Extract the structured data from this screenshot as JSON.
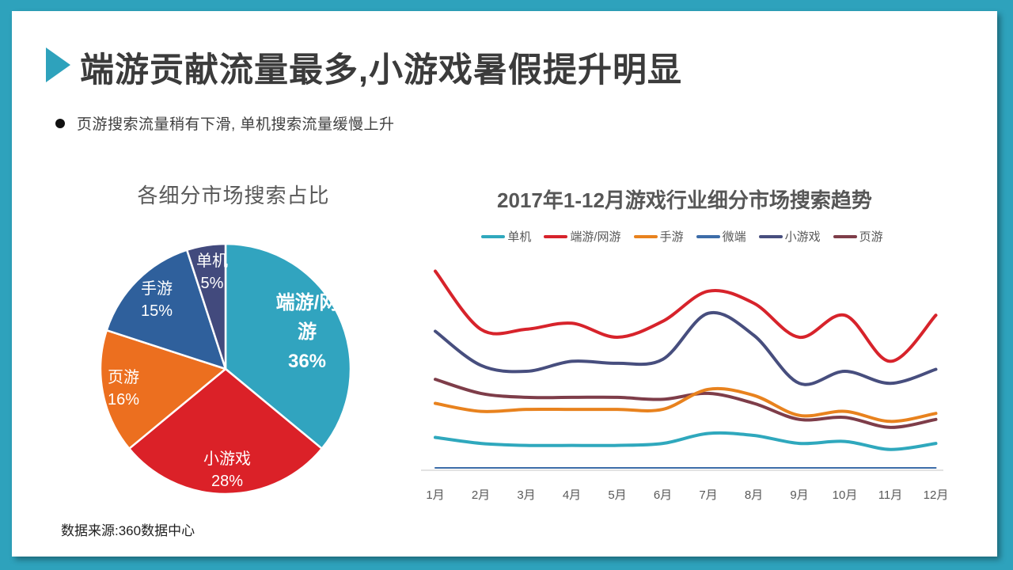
{
  "slide": {
    "title": "端游贡献流量最多,小游戏暑假提升明显",
    "bullet": "页游搜索流量稍有下滑, 单机搜索流量缓慢上升",
    "source": "数据来源:360数据中心"
  },
  "accent_color": "#2EA2BC",
  "chart_data": [
    {
      "type": "pie",
      "title": "各细分市场搜索占比",
      "start_angle_deg": -90,
      "direction": "clockwise",
      "slices": [
        {
          "name": "端游/网游",
          "value": 36,
          "pct_label": "36%",
          "color": "#31A4BF",
          "label_lines": [
            "端游/网",
            "游",
            "36%"
          ]
        },
        {
          "name": "小游戏",
          "value": 28,
          "pct_label": "28%",
          "color": "#DB2128",
          "label_lines": [
            "小游戏",
            "28%"
          ]
        },
        {
          "name": "页游",
          "value": 16,
          "pct_label": "16%",
          "color": "#EC6F1F",
          "label_lines": [
            "页游",
            "16%"
          ]
        },
        {
          "name": "手游",
          "value": 15,
          "pct_label": "15%",
          "color": "#2F609C",
          "label_lines": [
            "手游",
            "15%"
          ]
        },
        {
          "name": "单机",
          "value": 5,
          "pct_label": "5%",
          "color": "#424A7D",
          "label_lines": [
            "单机",
            "5%"
          ]
        }
      ]
    },
    {
      "type": "line",
      "title": "2017年1-12月游戏行业细分市场搜索趋势",
      "categories": [
        "1月",
        "2月",
        "3月",
        "4月",
        "5月",
        "6月",
        "7月",
        "8月",
        "9月",
        "10月",
        "11月",
        "12月"
      ],
      "series": [
        {
          "name": "单机",
          "color": "#2FA8BD",
          "values": [
            16,
            13,
            12,
            12,
            12,
            13,
            18,
            17,
            13,
            14,
            10,
            13
          ]
        },
        {
          "name": "端游/网游",
          "color": "#D7232B",
          "values": [
            99,
            70,
            70,
            73,
            66,
            74,
            89,
            83,
            66,
            77,
            54,
            77
          ]
        },
        {
          "name": "手游",
          "color": "#E8821E",
          "values": [
            33,
            29,
            30,
            30,
            30,
            30,
            40,
            37,
            27,
            29,
            24,
            28
          ]
        },
        {
          "name": "微端",
          "color": "#3C6CA8",
          "values": [
            0.8,
            0.8,
            0.8,
            0.8,
            0.8,
            0.8,
            0.8,
            0.8,
            0.8,
            0.8,
            0.8,
            0.8
          ]
        },
        {
          "name": "小游戏",
          "color": "#474E7E",
          "values": [
            69,
            52,
            49,
            54,
            53,
            55,
            78,
            67,
            43,
            49,
            43,
            50
          ]
        },
        {
          "name": "页游",
          "color": "#7E3D49",
          "values": [
            45,
            38,
            36,
            36,
            36,
            35,
            38,
            33,
            25,
            26,
            21,
            25
          ]
        }
      ],
      "ylim": [
        0,
        100
      ],
      "y_axis_visible": false,
      "grid": false,
      "legend_position": "top"
    }
  ]
}
